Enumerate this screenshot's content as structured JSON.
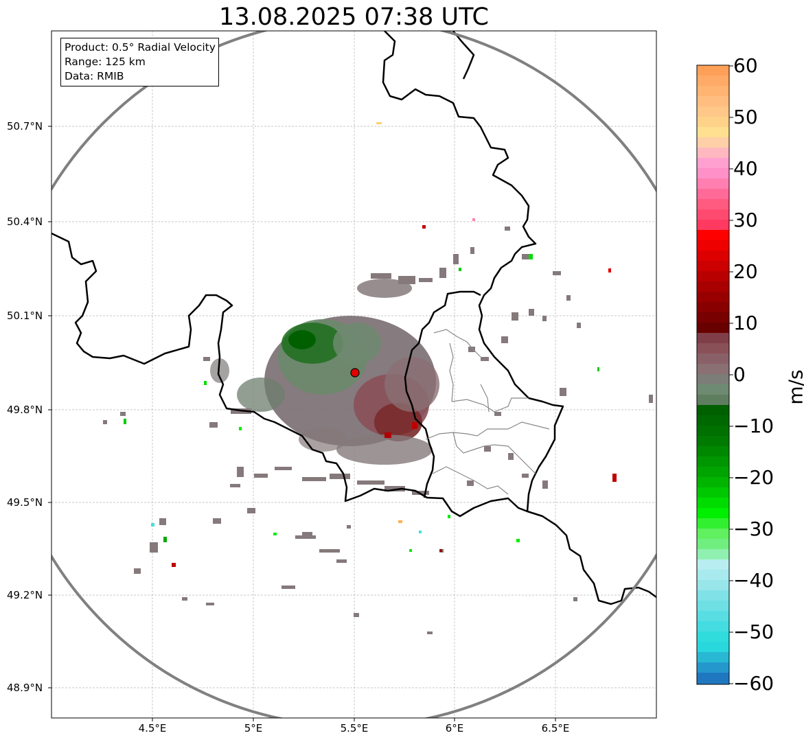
{
  "title": "13.08.2025 07:38 UTC",
  "info": {
    "product": "Product: 0.5° Radial Velocity",
    "range": "Range: 125 km",
    "data": "Data: RMIB"
  },
  "lat_ticks": [
    "50.7°N",
    "50.4°N",
    "50.1°N",
    "49.8°N",
    "49.5°N",
    "49.2°N",
    "48.9°N"
  ],
  "lon_ticks": [
    "4.5°E",
    "5°E",
    "5.5°E",
    "6°E",
    "6.5°E"
  ],
  "colorbar": {
    "unit": "m/s",
    "min": -60,
    "max": 60,
    "tick_labels": [
      "60",
      "50",
      "40",
      "30",
      "20",
      "10",
      "0",
      "−10",
      "−20",
      "−30",
      "−40",
      "−50",
      "−60"
    ],
    "colors": {
      "positive_high": "#ffa058",
      "positive_mid": "#ff0000",
      "positive_low": "#7a1010",
      "near_zero_pos": "#8a6f73",
      "near_zero_neg": "#5f7e5f",
      "negative_low": "#006000",
      "negative_mid": "#00ee00",
      "negative_high": "#30e0e0",
      "negative_extreme": "#1f77c0"
    }
  },
  "map": {
    "lon_range": [
      4.0,
      7.0
    ],
    "lat_range": [
      48.8,
      50.98
    ],
    "radar_site": {
      "lon": 5.5,
      "lat": 49.92
    },
    "range_ring_color": "#808080",
    "border_color": "#000000",
    "grid": true
  }
}
